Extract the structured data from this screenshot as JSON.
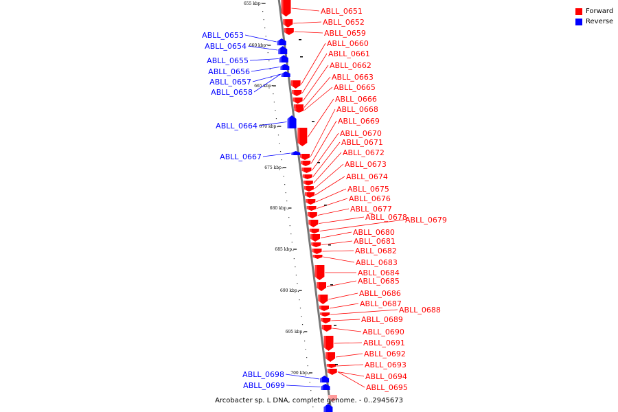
{
  "caption": "Arcobacter sp. L DNA, complete genome. - 0..2945673",
  "legend": [
    {
      "label": "Forward",
      "color": "#ff0000"
    },
    {
      "label": "Reverse",
      "color": "#0000ff"
    }
  ],
  "ticks": [
    "655 kbp",
    "660 kbp",
    "665 kbp",
    "670 kbp",
    "675 kbp",
    "680 kbp",
    "685 kbp",
    "690 kbp",
    "695 kbp",
    "700 kbp"
  ],
  "genes_forward": [
    "ABLL_0651",
    "ABLL_0652",
    "ABLL_0659",
    "ABLL_0660",
    "ABLL_0661",
    "ABLL_0662",
    "ABLL_0663",
    "ABLL_0665",
    "ABLL_0666",
    "ABLL_0668",
    "ABLL_0669",
    "ABLL_0670",
    "ABLL_0671",
    "ABLL_0672",
    "ABLL_0673",
    "ABLL_0674",
    "ABLL_0675",
    "ABLL_0676",
    "ABLL_0677",
    "ABLL_0678",
    "ABLL_0679",
    "ABLL_0680",
    "ABLL_0681",
    "ABLL_0682",
    "ABLL_0683",
    "ABLL_0684",
    "ABLL_0685",
    "ABLL_0686",
    "ABLL_0687",
    "ABLL_0688",
    "ABLL_0689",
    "ABLL_0690",
    "ABLL_0691",
    "ABLL_0692",
    "ABLL_0693",
    "ABLL_0694",
    "ABLL_0695"
  ],
  "genes_reverse": [
    "ABLL_0653",
    "ABLL_0654",
    "ABLL_0655",
    "ABLL_0656",
    "ABLL_0657",
    "ABLL_0658",
    "ABLL_0664",
    "ABLL_0667",
    "ABLL_0698",
    "ABLL_0699"
  ]
}
